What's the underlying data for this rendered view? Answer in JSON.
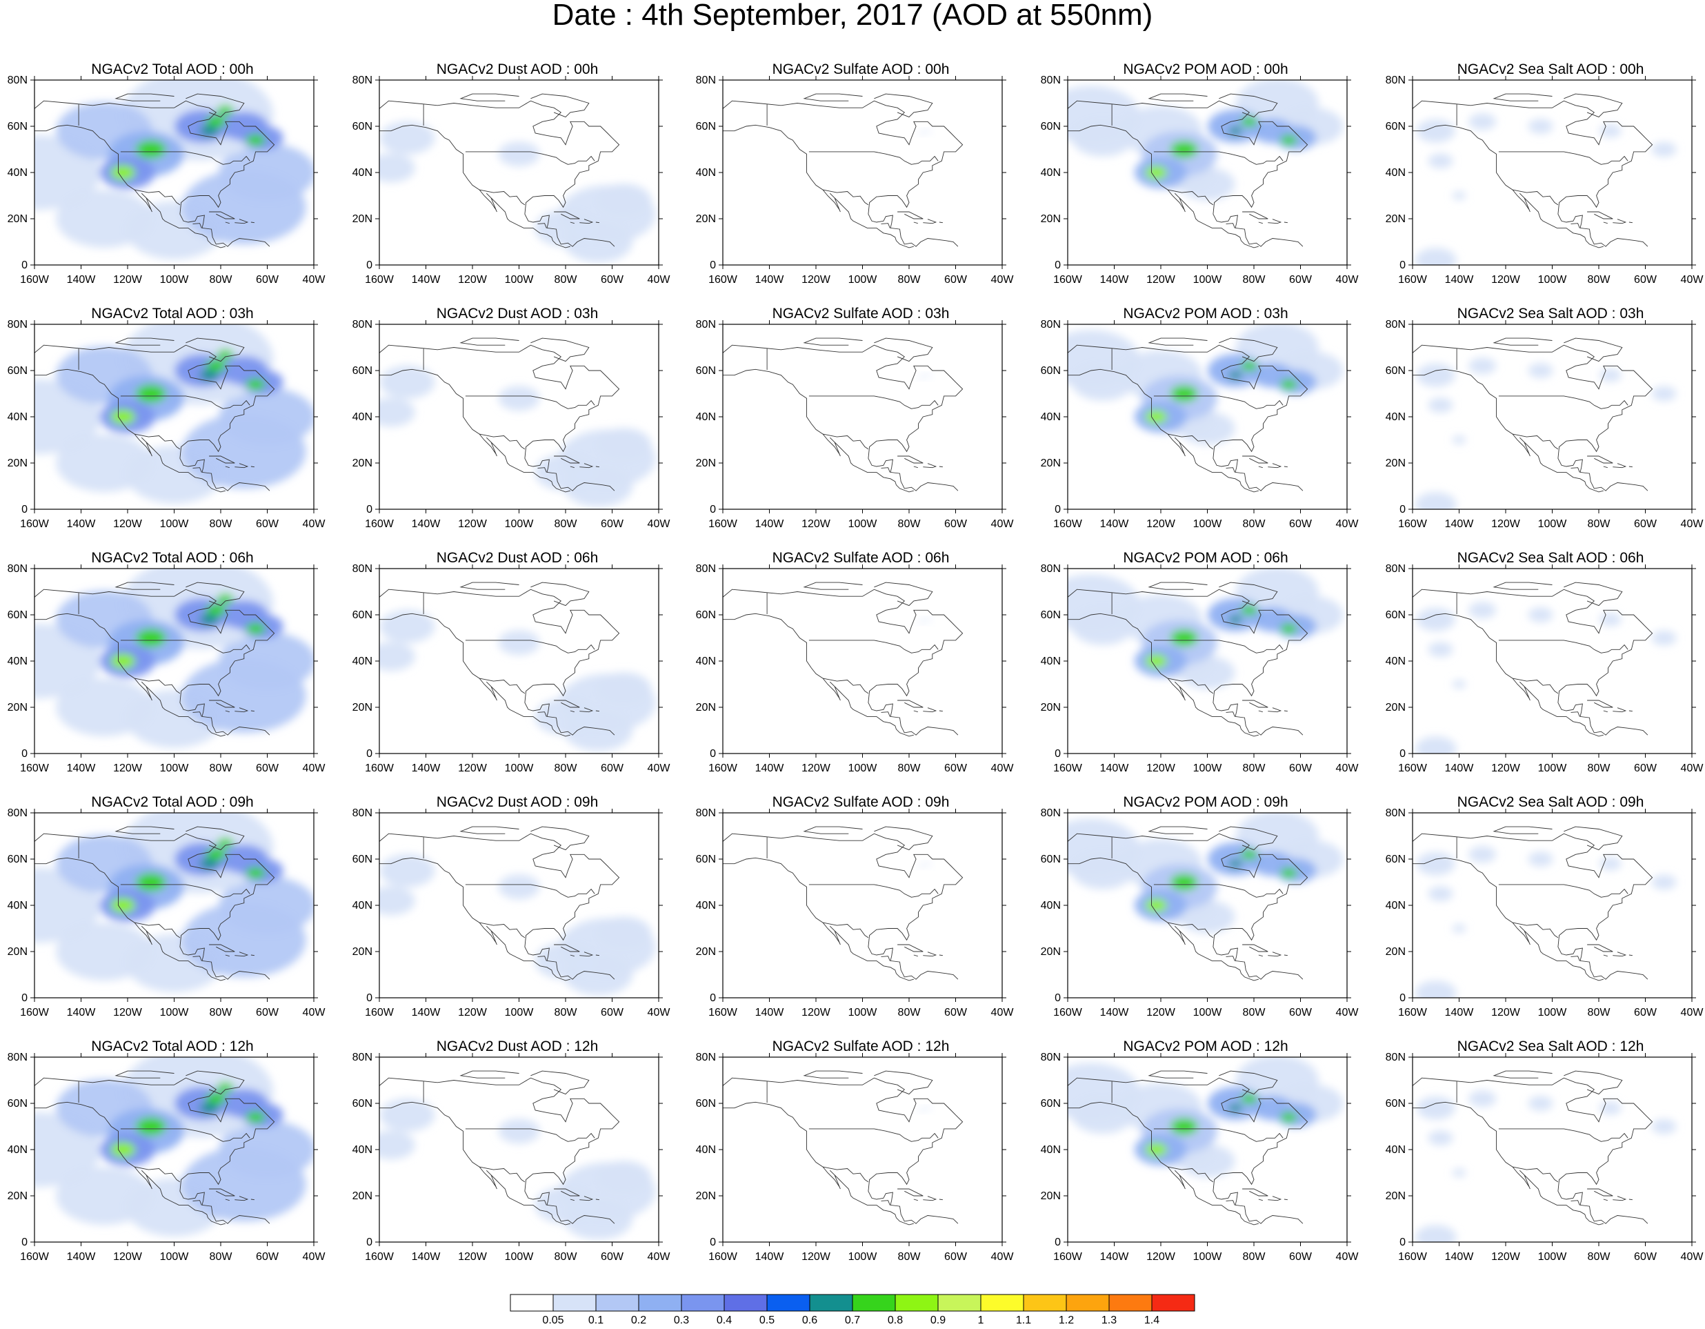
{
  "title": "Date : 4th September, 2017 (AOD at 550nm)",
  "lat_labels": [
    "0",
    "20N",
    "40N",
    "60N",
    "80N"
  ],
  "lon_labels": [
    "160W",
    "140W",
    "120W",
    "100W",
    "80W",
    "60W",
    "40W"
  ],
  "species_columns": [
    "total",
    "dust",
    "sulfate",
    "pom",
    "seasalt"
  ],
  "rows": [
    {
      "hour": "00h",
      "titles": [
        "NGACv2 Total AOD : 00h",
        "NGACv2 Dust AOD : 00h",
        "NGACv2 Sulfate AOD : 00h",
        "NGACv2 POM AOD : 00h",
        "NGACv2 Sea Salt AOD : 00h"
      ]
    },
    {
      "hour": "03h",
      "titles": [
        "NGACv2 Total AOD : 03h",
        "NGACv2 Dust AOD : 03h",
        "NGACv2 Sulfate AOD : 03h",
        "NGACv2 POM AOD : 03h",
        "NGACv2 Sea Salt AOD : 03h"
      ]
    },
    {
      "hour": "06h",
      "titles": [
        "NGACv2 Total AOD : 06h",
        "NGACv2 Dust AOD : 06h",
        "NGACv2 Sulfate AOD : 06h",
        "NGACv2 POM AOD : 06h",
        "NGACv2 Sea Salt AOD : 06h"
      ]
    },
    {
      "hour": "09h",
      "titles": [
        "NGACv2 Total AOD : 09h",
        "NGACv2 Dust AOD : 09h",
        "NGACv2 Sulfate AOD : 09h",
        "NGACv2 POM AOD : 09h",
        "NGACv2 Sea Salt  AOD : 09h"
      ]
    },
    {
      "hour": "12h",
      "titles": [
        "NGACv2 Total AOD  : 12h",
        "NGACv2 Dust AOD : 12h",
        "NGACv2 Sulfate AOD : 12h",
        "NGACv2 POM  AOD : 12h",
        "NGACv2 Sea Salt  AOD : 12h"
      ]
    }
  ],
  "colorbar": {
    "labels": [
      "0.05",
      "0.1",
      "0.2",
      "0.3",
      "0.4",
      "0.5",
      "0.6",
      "0.7",
      "0.8",
      "0.9",
      "1",
      "1.1",
      "1.2",
      "1.3",
      "1.4"
    ],
    "colors": [
      "#ffffff",
      "#d7e3f8",
      "#b3c8f5",
      "#8fb0f2",
      "#7a95ef",
      "#5f6fe6",
      "#0a5ff0",
      "#138f8f",
      "#36d41c",
      "#8ef514",
      "#c8f55a",
      "#fdfc2a",
      "#fdc516",
      "#fda40e",
      "#fd7a10",
      "#f52a14"
    ]
  }
}
